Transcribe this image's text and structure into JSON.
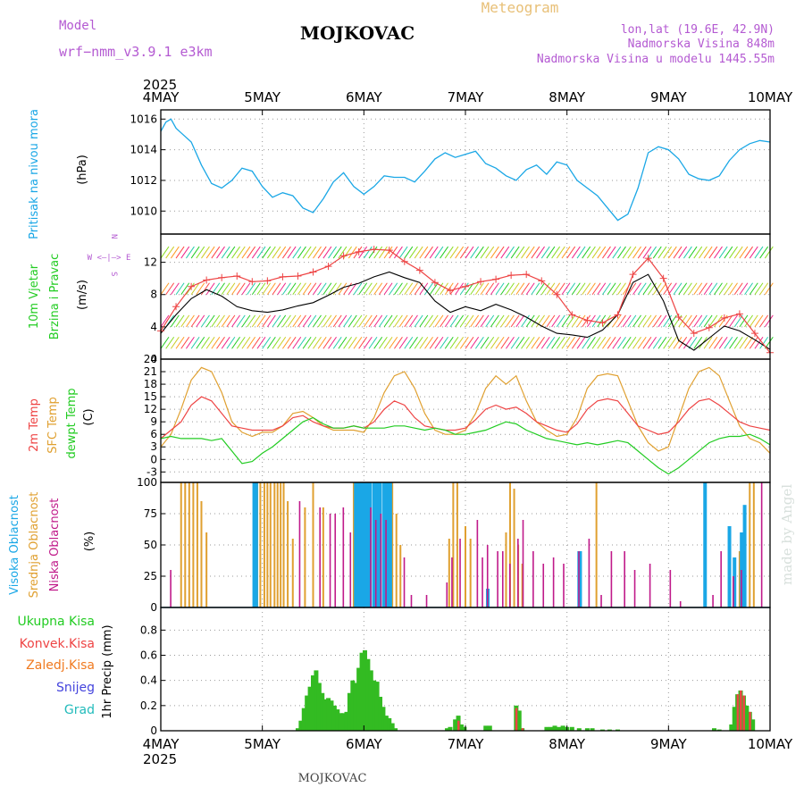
{
  "header": {
    "model_label": "Model",
    "model_name": "wrf−nmm_v3.9.1  e3km",
    "station": "MOJKOVAC",
    "product": "Meteogram",
    "coords": "lon,lat (19.6E, 42.9N)",
    "elevation": "Nadmorska Visina 848m",
    "model_elevation": "Nadmorska Visina u modelu 1445.55m",
    "year": "2025",
    "footer_station": "MOJKOVAC",
    "credit": "made by Angel"
  },
  "colors": {
    "pressure": "#1aa7e6",
    "wind_label": "#22cc22",
    "wind_speed_line": "#000000",
    "gust": "#ee4444",
    "t2m": "#ee4444",
    "sfc": "#e0a030",
    "dewpt": "#22cc22",
    "cloud_high": "#1aa7e6",
    "cloud_mid": "#e0a030",
    "cloud_low": "#c01a8a",
    "precip_total": "#33bb22",
    "precip_conv": "#ee4444",
    "precip_frz": "#f07a20",
    "snow": "#4444dd",
    "grad": "#22bbbb",
    "header_purple": "#b45ad2"
  },
  "chart_data": [
    {
      "type": "line",
      "name": "pressure",
      "ylabel_1": "Pritisak na nivou mora",
      "ylabel_2": "(hPa)",
      "x_labels": [
        "4MAY",
        "5MAY",
        "6MAY",
        "7MAY",
        "8MAY",
        "9MAY",
        "10MAY"
      ],
      "ylim": [
        1008.5,
        1016.6
      ],
      "yticks": [
        1010,
        1012,
        1014,
        1016
      ],
      "x": [
        0,
        0.05,
        0.1,
        0.15,
        0.2,
        0.3,
        0.4,
        0.5,
        0.6,
        0.7,
        0.8,
        0.9,
        1,
        1.1,
        1.2,
        1.3,
        1.4,
        1.5,
        1.6,
        1.7,
        1.8,
        1.9,
        2,
        2.1,
        2.2,
        2.3,
        2.4,
        2.5,
        2.6,
        2.7,
        2.8,
        2.9,
        3,
        3.1,
        3.2,
        3.3,
        3.4,
        3.5,
        3.6,
        3.7,
        3.8,
        3.9,
        4,
        4.1,
        4.2,
        4.3,
        4.4,
        4.5,
        4.6,
        4.7,
        4.8,
        4.9,
        5,
        5.1,
        5.2,
        5.3,
        5.4,
        5.5,
        5.6,
        5.7,
        5.8,
        5.9,
        6
      ],
      "values": [
        1015.2,
        1015.8,
        1016.0,
        1015.4,
        1015.1,
        1014.5,
        1013.0,
        1011.8,
        1011.5,
        1012.0,
        1012.8,
        1012.6,
        1011.6,
        1010.9,
        1011.2,
        1011.0,
        1010.2,
        1009.9,
        1010.8,
        1011.9,
        1012.5,
        1011.6,
        1011.1,
        1011.6,
        1012.3,
        1012.2,
        1012.2,
        1011.9,
        1012.6,
        1013.4,
        1013.8,
        1013.5,
        1013.7,
        1013.9,
        1013.1,
        1012.8,
        1012.3,
        1012.0,
        1012.7,
        1013.0,
        1012.4,
        1013.2,
        1013.0,
        1012.0,
        1011.5,
        1011.0,
        1010.2,
        1009.4,
        1009.8,
        1011.5,
        1013.8,
        1014.2,
        1014.0,
        1013.4,
        1012.4,
        1012.1,
        1012.0,
        1012.3,
        1013.3,
        1014.0,
        1014.4,
        1014.6,
        1014.5
      ]
    },
    {
      "type": "line",
      "name": "wind",
      "ylabel_1": "10m Vjetar",
      "ylabel_2": "Brzina i Pravac",
      "ylabel_3": "(m/s)",
      "compass": "N",
      "compass_we": "W <–|–> E",
      "compass_s": "S",
      "ylim": [
        0,
        15.5
      ],
      "yticks": [
        0,
        4,
        8,
        12
      ],
      "x": [
        0,
        0.15,
        0.3,
        0.45,
        0.6,
        0.75,
        0.9,
        1.05,
        1.2,
        1.35,
        1.5,
        1.65,
        1.8,
        1.95,
        2.1,
        2.25,
        2.4,
        2.55,
        2.7,
        2.85,
        3.0,
        3.15,
        3.3,
        3.45,
        3.6,
        3.75,
        3.9,
        4.05,
        4.2,
        4.35,
        4.5,
        4.65,
        4.8,
        4.95,
        5.1,
        5.25,
        5.4,
        5.55,
        5.7,
        5.85,
        6.0
      ],
      "speed": [
        3.2,
        5.5,
        7.5,
        8.6,
        7.8,
        6.5,
        6.0,
        5.8,
        6.1,
        6.6,
        7.0,
        7.9,
        8.9,
        9.4,
        10.2,
        10.8,
        10.1,
        9.5,
        7.2,
        5.8,
        6.5,
        6.0,
        6.8,
        6.1,
        5.2,
        4.1,
        3.2,
        3.0,
        2.7,
        3.6,
        5.5,
        9.5,
        10.5,
        7.2,
        2.3,
        1.1,
        2.6,
        4.1,
        3.5,
        2.4,
        1.2
      ],
      "gust": [
        3.5,
        6.5,
        9.0,
        9.8,
        10.1,
        10.3,
        9.6,
        9.7,
        10.2,
        10.3,
        10.8,
        11.5,
        12.8,
        13.3,
        13.6,
        13.5,
        12.1,
        11.0,
        9.5,
        8.5,
        9.0,
        9.6,
        9.9,
        10.4,
        10.5,
        9.7,
        8.0,
        5.5,
        4.8,
        4.5,
        5.5,
        10.5,
        12.5,
        10.0,
        5.2,
        3.2,
        3.9,
        5.1,
        5.6,
        3.2,
        0.8
      ]
    },
    {
      "type": "line",
      "name": "temperature",
      "ylabel_1": "2m Temp",
      "ylabel_2": "SFC Temp",
      "ylabel_3": "dewpt Temp",
      "ylabel_4": "(C)",
      "ylim": [
        -5.5,
        24
      ],
      "yticks": [
        -3,
        0,
        3,
        6,
        9,
        12,
        15,
        18,
        21,
        24
      ],
      "x": [
        0,
        0.1,
        0.2,
        0.3,
        0.4,
        0.5,
        0.6,
        0.7,
        0.8,
        0.9,
        1,
        1.1,
        1.2,
        1.3,
        1.4,
        1.5,
        1.6,
        1.7,
        1.8,
        1.9,
        2,
        2.1,
        2.2,
        2.3,
        2.4,
        2.5,
        2.6,
        2.7,
        2.8,
        2.9,
        3,
        3.1,
        3.2,
        3.3,
        3.4,
        3.5,
        3.6,
        3.7,
        3.8,
        3.9,
        4,
        4.1,
        4.2,
        4.3,
        4.4,
        4.5,
        4.6,
        4.7,
        4.8,
        4.9,
        5,
        5.1,
        5.2,
        5.3,
        5.4,
        5.5,
        5.6,
        5.7,
        5.8,
        5.9,
        6
      ],
      "t2m": [
        5,
        7,
        9,
        13,
        15,
        14,
        11,
        8,
        7.5,
        7,
        7,
        7,
        8,
        10,
        10.5,
        9,
        8,
        7.5,
        7.5,
        8,
        7.5,
        9,
        12,
        14,
        13,
        10,
        8,
        7.5,
        7,
        7,
        7.5,
        9.5,
        12,
        13,
        12,
        12.5,
        11,
        9,
        8,
        7,
        6.5,
        8.5,
        12,
        14,
        14.5,
        14,
        11,
        8,
        7,
        6,
        6.5,
        9,
        12,
        14,
        14.5,
        13,
        11,
        9,
        8,
        7.5,
        7
      ],
      "sfc": [
        3,
        6,
        12,
        19,
        22,
        21,
        16,
        9,
        6.5,
        5.5,
        6.5,
        6.5,
        8,
        11,
        11.5,
        10,
        8,
        7,
        7,
        7,
        6.5,
        10,
        16,
        20,
        21,
        17,
        11,
        7,
        6,
        6,
        7,
        11,
        17,
        20,
        18,
        20,
        14,
        9,
        7,
        5.5,
        6,
        10,
        17,
        20,
        20.5,
        20,
        14,
        8,
        4,
        2,
        3,
        10,
        17,
        21,
        22,
        20,
        14,
        8,
        5,
        4,
        1.5
      ],
      "dewpt": [
        5,
        5.5,
        5,
        5,
        5,
        4.5,
        5,
        2,
        -1,
        -0.5,
        1.5,
        3,
        5,
        7,
        9,
        10,
        8.5,
        7.5,
        7.5,
        8,
        7.5,
        7.5,
        7.5,
        8,
        8,
        7.5,
        7,
        7.5,
        7,
        6,
        6,
        6.5,
        7,
        8,
        9,
        8.5,
        7,
        6,
        5,
        4.5,
        4,
        3.5,
        4,
        3.5,
        4,
        4.5,
        4,
        2,
        0,
        -2,
        -3.5,
        -2,
        0,
        2,
        4,
        5,
        5.5,
        5.5,
        6,
        5,
        3.5
      ]
    },
    {
      "type": "bar",
      "name": "clouds",
      "ylabel_1": "Visoka Oblacnost",
      "ylabel_2": "Srednja Oblacnost",
      "ylabel_3": "Niska Oblacnost",
      "ylabel_4": "(%)",
      "ylim": [
        0,
        100
      ],
      "yticks": [
        0,
        25,
        50,
        75,
        100
      ],
      "high": [
        [
          0.92,
          100
        ],
        [
          0.94,
          100
        ],
        [
          1.92,
          100
        ],
        [
          1.95,
          100
        ],
        [
          1.98,
          100
        ],
        [
          2.0,
          100
        ],
        [
          2.03,
          100
        ],
        [
          2.06,
          100
        ],
        [
          2.1,
          100
        ],
        [
          2.13,
          100
        ],
        [
          2.16,
          100
        ],
        [
          2.2,
          100
        ],
        [
          2.23,
          100
        ],
        [
          2.26,
          100
        ],
        [
          3.22,
          15
        ],
        [
          4.12,
          45
        ],
        [
          4.13,
          45
        ],
        [
          5.36,
          100
        ],
        [
          5.6,
          65
        ],
        [
          5.65,
          40
        ],
        [
          5.72,
          60
        ],
        [
          5.75,
          82
        ]
      ],
      "mid": [
        [
          0.2,
          100
        ],
        [
          0.24,
          100
        ],
        [
          0.28,
          100
        ],
        [
          0.32,
          100
        ],
        [
          0.36,
          100
        ],
        [
          0.4,
          85
        ],
        [
          0.45,
          60
        ],
        [
          0.95,
          100
        ],
        [
          0.98,
          100
        ],
        [
          1.02,
          100
        ],
        [
          1.05,
          100
        ],
        [
          1.08,
          100
        ],
        [
          1.12,
          100
        ],
        [
          1.15,
          100
        ],
        [
          1.18,
          100
        ],
        [
          1.21,
          100
        ],
        [
          1.25,
          85
        ],
        [
          1.3,
          55
        ],
        [
          1.42,
          80
        ],
        [
          1.5,
          100
        ],
        [
          1.6,
          80
        ],
        [
          1.9,
          100
        ],
        [
          1.95,
          95
        ],
        [
          2.25,
          100
        ],
        [
          2.28,
          100
        ],
        [
          2.32,
          75
        ],
        [
          2.36,
          50
        ],
        [
          2.84,
          55
        ],
        [
          2.88,
          100
        ],
        [
          2.92,
          100
        ],
        [
          3.0,
          65
        ],
        [
          3.05,
          55
        ],
        [
          3.4,
          60
        ],
        [
          3.44,
          100
        ],
        [
          3.48,
          95
        ],
        [
          3.52,
          50
        ],
        [
          3.56,
          35
        ],
        [
          4.29,
          100
        ],
        [
          5.7,
          45
        ],
        [
          5.75,
          60
        ],
        [
          5.8,
          100
        ],
        [
          5.84,
          100
        ]
      ],
      "low": [
        [
          0.08,
          30
        ],
        [
          1.35,
          85
        ],
        [
          1.55,
          80
        ],
        [
          1.65,
          75
        ],
        [
          1.7,
          75
        ],
        [
          1.78,
          80
        ],
        [
          1.85,
          60
        ],
        [
          2.05,
          80
        ],
        [
          2.1,
          70
        ],
        [
          2.15,
          75
        ],
        [
          2.2,
          70
        ],
        [
          2.38,
          40
        ],
        [
          2.45,
          10
        ],
        [
          2.6,
          10
        ],
        [
          2.8,
          20
        ],
        [
          2.85,
          40
        ],
        [
          2.93,
          55
        ],
        [
          3.1,
          70
        ],
        [
          3.15,
          40
        ],
        [
          3.2,
          50
        ],
        [
          3.3,
          45
        ],
        [
          3.35,
          45
        ],
        [
          3.42,
          35
        ],
        [
          3.5,
          55
        ],
        [
          3.55,
          70
        ],
        [
          3.65,
          45
        ],
        [
          3.75,
          35
        ],
        [
          3.85,
          40
        ],
        [
          3.95,
          35
        ],
        [
          4.1,
          45
        ],
        [
          4.2,
          55
        ],
        [
          4.32,
          10
        ],
        [
          4.42,
          45
        ],
        [
          4.55,
          45
        ],
        [
          4.65,
          30
        ],
        [
          4.8,
          35
        ],
        [
          5.0,
          30
        ],
        [
          5.1,
          5
        ],
        [
          5.42,
          10
        ],
        [
          5.5,
          45
        ],
        [
          5.62,
          25
        ],
        [
          5.7,
          30
        ],
        [
          5.9,
          100
        ]
      ]
    },
    {
      "type": "bar",
      "name": "precipitation",
      "ylabel_1": "1hr Precip (mm)",
      "legend": [
        "Ukupna Kisa",
        "Konvek.Kisa",
        "Zaledj.Kisa",
        "Snijeg",
        "Grad"
      ],
      "ylim": [
        0,
        0.98
      ],
      "yticks": [
        0,
        0.2,
        0.4,
        0.6,
        0.8
      ],
      "total": [
        [
          1.35,
          0.02
        ],
        [
          1.38,
          0.08
        ],
        [
          1.41,
          0.18
        ],
        [
          1.44,
          0.28
        ],
        [
          1.47,
          0.35
        ],
        [
          1.5,
          0.44
        ],
        [
          1.53,
          0.48
        ],
        [
          1.56,
          0.38
        ],
        [
          1.59,
          0.3
        ],
        [
          1.62,
          0.25
        ],
        [
          1.65,
          0.26
        ],
        [
          1.68,
          0.24
        ],
        [
          1.71,
          0.2
        ],
        [
          1.74,
          0.17
        ],
        [
          1.77,
          0.14
        ],
        [
          1.8,
          0.14
        ],
        [
          1.83,
          0.15
        ],
        [
          1.86,
          0.3
        ],
        [
          1.89,
          0.4
        ],
        [
          1.92,
          0.38
        ],
        [
          1.95,
          0.5
        ],
        [
          1.98,
          0.62
        ],
        [
          2.01,
          0.64
        ],
        [
          2.04,
          0.57
        ],
        [
          2.07,
          0.48
        ],
        [
          2.1,
          0.4
        ],
        [
          2.13,
          0.39
        ],
        [
          2.16,
          0.27
        ],
        [
          2.19,
          0.19
        ],
        [
          2.22,
          0.12
        ],
        [
          2.25,
          0.1
        ],
        [
          2.28,
          0.06
        ],
        [
          2.31,
          0.02
        ],
        [
          2.82,
          0.02
        ],
        [
          2.85,
          0.03
        ],
        [
          2.9,
          0.09
        ],
        [
          2.93,
          0.12
        ],
        [
          2.96,
          0.05
        ],
        [
          2.99,
          0.03
        ],
        [
          3.2,
          0.04
        ],
        [
          3.24,
          0.04
        ],
        [
          3.5,
          0.2
        ],
        [
          3.53,
          0.16
        ],
        [
          3.56,
          0.02
        ],
        [
          3.8,
          0.03
        ],
        [
          3.84,
          0.03
        ],
        [
          3.88,
          0.04
        ],
        [
          3.92,
          0.03
        ],
        [
          3.96,
          0.04
        ],
        [
          4.0,
          0.03
        ],
        [
          4.05,
          0.03
        ],
        [
          4.12,
          0.02
        ],
        [
          4.2,
          0.02
        ],
        [
          4.25,
          0.02
        ],
        [
          4.35,
          0.01
        ],
        [
          4.42,
          0.01
        ],
        [
          4.5,
          0.01
        ],
        [
          5.45,
          0.02
        ],
        [
          5.5,
          0.01
        ],
        [
          5.62,
          0.05
        ],
        [
          5.65,
          0.19
        ],
        [
          5.68,
          0.29
        ],
        [
          5.71,
          0.32
        ],
        [
          5.74,
          0.28
        ],
        [
          5.77,
          0.2
        ],
        [
          5.8,
          0.15
        ],
        [
          5.83,
          0.09
        ]
      ],
      "convective": [
        [
          2.93,
          0.08
        ],
        [
          3.5,
          0.18
        ],
        [
          3.56,
          0.02
        ],
        [
          5.68,
          0.29
        ],
        [
          5.71,
          0.32
        ],
        [
          5.74,
          0.28
        ],
        [
          5.8,
          0.15
        ]
      ]
    }
  ]
}
